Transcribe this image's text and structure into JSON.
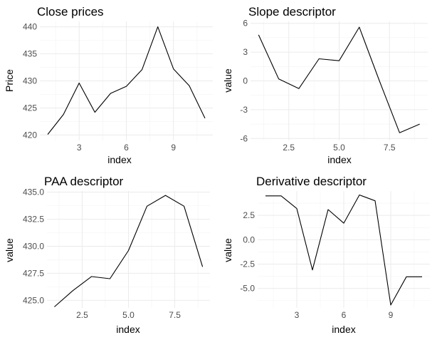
{
  "chart_data": [
    {
      "type": "line",
      "title": "Close prices",
      "xlabel": "index",
      "ylabel": "Price",
      "xlim": [
        0.5,
        11.5
      ],
      "ylim": [
        419.0,
        441.0
      ],
      "xticks": [
        3,
        6,
        9
      ],
      "yticks": [
        420,
        425,
        430,
        435,
        440
      ],
      "ytick_labels": [
        "420",
        "425",
        "430",
        "435",
        "440"
      ],
      "xtick_labels": [
        "3",
        "6",
        "9"
      ],
      "grid": true,
      "x": [
        1,
        2,
        3,
        4,
        5,
        6,
        7,
        8,
        9,
        10,
        11
      ],
      "y": [
        420.1,
        423.8,
        429.6,
        424.2,
        427.7,
        429.0,
        432.1,
        440.0,
        432.2,
        429.1,
        423.1
      ]
    },
    {
      "type": "line",
      "title": "Slope descriptor",
      "xlabel": "index",
      "ylabel": "value",
      "xlim": [
        0.6,
        9.4
      ],
      "ylim": [
        -6.2,
        6.2
      ],
      "xticks": [
        2.5,
        5.0,
        7.5
      ],
      "yticks": [
        -6,
        -3,
        0,
        3,
        6
      ],
      "ytick_labels": [
        "-6",
        "-3",
        "0",
        "3",
        "6"
      ],
      "xtick_labels": [
        "2.5",
        "5.0",
        "7.5"
      ],
      "grid": true,
      "x": [
        1,
        2,
        3,
        4,
        5,
        6,
        7,
        8,
        9
      ],
      "y": [
        4.8,
        0.2,
        -0.8,
        2.3,
        2.1,
        5.6,
        0.0,
        -5.4,
        -4.5
      ]
    },
    {
      "type": "line",
      "title": "PAA descriptor",
      "xlabel": "index",
      "ylabel": "value",
      "xlim": [
        0.6,
        9.4
      ],
      "ylim": [
        424.3,
        435.1
      ],
      "xticks": [
        2.5,
        5.0,
        7.5
      ],
      "yticks": [
        425.0,
        427.5,
        430.0,
        432.5,
        435.0
      ],
      "ytick_labels": [
        "425.0",
        "427.5",
        "430.0",
        "432.5",
        "435.0"
      ],
      "xtick_labels": [
        "2.5",
        "5.0",
        "7.5"
      ],
      "grid": true,
      "x": [
        1,
        2,
        3,
        4,
        5,
        6,
        7,
        8,
        9
      ],
      "y": [
        424.4,
        425.9,
        427.2,
        427.0,
        429.6,
        433.7,
        434.7,
        433.7,
        428.1
      ]
    },
    {
      "type": "line",
      "title": "Derivative descriptor",
      "xlabel": "index",
      "ylabel": "value",
      "xlim": [
        0.5,
        11.5
      ],
      "ylim": [
        -7.0,
        5.0
      ],
      "xticks": [
        3,
        6,
        9
      ],
      "yticks": [
        -5.0,
        -2.5,
        0.0,
        2.5
      ],
      "ytick_labels": [
        "-5.0",
        "-2.5",
        "0.0",
        "2.5"
      ],
      "xtick_labels": [
        "3",
        "6",
        "9"
      ],
      "grid": true,
      "x": [
        1,
        2,
        3,
        4,
        5,
        6,
        7,
        8,
        9,
        10,
        11
      ],
      "y": [
        4.5,
        4.5,
        3.2,
        -3.1,
        3.1,
        1.7,
        4.6,
        4.0,
        -6.7,
        -3.8,
        -3.8
      ]
    }
  ]
}
